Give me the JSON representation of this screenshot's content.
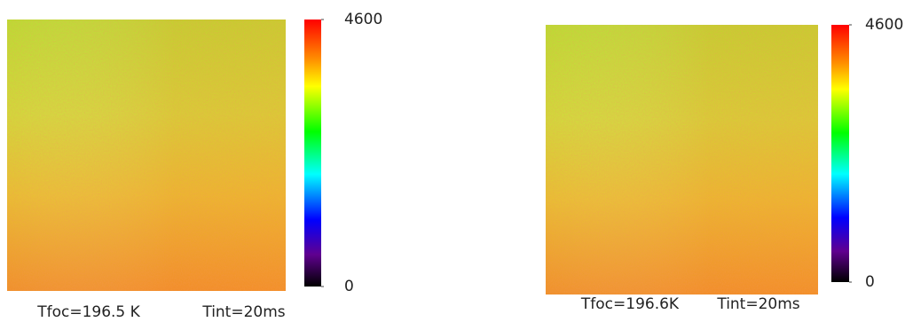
{
  "chart_data": [
    {
      "type": "heatmap",
      "colorbar_lim": [
        0,
        4600
      ],
      "colorbar_ticks": [
        0,
        4600
      ],
      "annotations": [
        "Tfoc=196.5 K",
        "Tint=20ms"
      ]
    },
    {
      "type": "heatmap",
      "colorbar_lim": [
        0,
        4600
      ],
      "colorbar_ticks": [
        0,
        4600
      ],
      "annotations": [
        "Tfoc=196.6K",
        "Tint=20ms"
      ]
    }
  ]
}
